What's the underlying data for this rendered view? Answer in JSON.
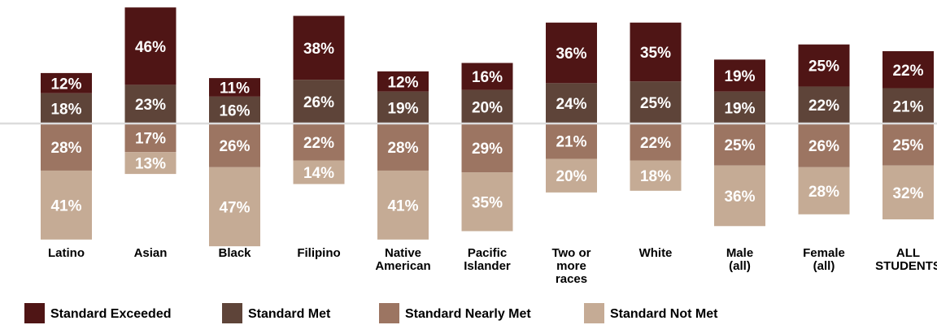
{
  "chart_data": {
    "type": "bar",
    "stacking": "diverging",
    "categories": [
      [
        "Latino"
      ],
      [
        "Asian"
      ],
      [
        "Black"
      ],
      [
        "Filipino"
      ],
      [
        "Native",
        "American"
      ],
      [
        "Pacific",
        "Islander"
      ],
      [
        "Two or",
        "more",
        "races"
      ],
      [
        "White"
      ],
      [
        "Male",
        "(all)"
      ],
      [
        "Female",
        "(all)"
      ],
      [
        "ALL",
        "STUDENTS"
      ]
    ],
    "series": [
      {
        "name": "Standard Exceeded",
        "color": "#4f1515",
        "text_color": "#ffffff",
        "side": "above",
        "values": [
          12,
          46,
          11,
          38,
          12,
          16,
          36,
          35,
          19,
          25,
          22
        ],
        "labels": [
          "12%",
          "46%",
          "11%",
          "38%",
          "12%",
          "16%",
          "36%",
          "35%",
          "19%",
          "25%",
          "22%"
        ]
      },
      {
        "name": "Standard Met",
        "color": "#5e4439",
        "text_color": "#ffffff",
        "side": "above",
        "values": [
          18,
          23,
          16,
          26,
          19,
          20,
          24,
          25,
          19,
          22,
          21
        ],
        "labels": [
          "18%",
          "23%",
          "16%",
          "26%",
          "19%",
          "20%",
          "24%",
          "25%",
          "19%",
          "22%",
          "21%"
        ]
      },
      {
        "name": "Standard Nearly Met",
        "color": "#9c7562",
        "text_color": "#ffffff",
        "side": "below",
        "values": [
          28,
          17,
          26,
          22,
          28,
          29,
          21,
          22,
          25,
          26,
          25
        ],
        "labels": [
          "28%",
          "17%",
          "26%",
          "22%",
          "28%",
          "29%",
          "21%",
          "22%",
          "25%",
          "26%",
          "25%"
        ]
      },
      {
        "name": "Standard Not Met",
        "color": "#c5ab95",
        "text_color": "#ffffff",
        "side": "below",
        "values": [
          41,
          13,
          47,
          14,
          41,
          35,
          20,
          18,
          36,
          28,
          32
        ],
        "labels": [
          "41%",
          "13%",
          "47%",
          "14%",
          "41%",
          "35%",
          "20%",
          "18%",
          "36%",
          "28%",
          "32%"
        ]
      }
    ],
    "baseline_color": "#dcdcdc",
    "legend_position": "bottom-left",
    "grid": false
  }
}
